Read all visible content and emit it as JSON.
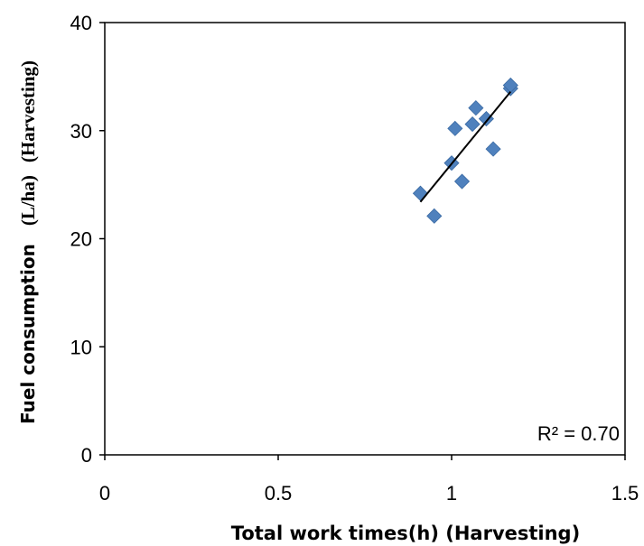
{
  "chart_data": {
    "type": "scatter",
    "title": "",
    "xlabel": "Total work times(h) (Harvesting)",
    "ylabel_parts": [
      "Fuel consumption",
      "(L/ha)",
      "(Harvesting)"
    ],
    "xlim": [
      0,
      1.5
    ],
    "ylim": [
      0,
      40
    ],
    "x_ticks": [
      0,
      0.5,
      1,
      1.5
    ],
    "x_tick_labels": [
      "0",
      "0.5",
      "1",
      "1.5"
    ],
    "y_ticks": [
      0,
      10,
      20,
      30,
      40
    ],
    "y_tick_labels": [
      "0",
      "10",
      "20",
      "30",
      "40"
    ],
    "grid": false,
    "marker": "diamond",
    "marker_color": "#4F81BD",
    "points": [
      {
        "x": 0.91,
        "y": 24.2
      },
      {
        "x": 0.95,
        "y": 22.1
      },
      {
        "x": 1.0,
        "y": 27.0
      },
      {
        "x": 1.01,
        "y": 30.2
      },
      {
        "x": 1.03,
        "y": 25.3
      },
      {
        "x": 1.06,
        "y": 30.6
      },
      {
        "x": 1.07,
        "y": 32.1
      },
      {
        "x": 1.1,
        "y": 31.1
      },
      {
        "x": 1.12,
        "y": 28.3
      },
      {
        "x": 1.17,
        "y": 33.9
      },
      {
        "x": 1.17,
        "y": 34.2
      }
    ],
    "trendline": {
      "type": "linear",
      "x_start": 0.91,
      "y_start": 23.4,
      "x_end": 1.17,
      "y_end": 33.6,
      "color": "#000000"
    },
    "annotation": "R² = 0.70"
  }
}
